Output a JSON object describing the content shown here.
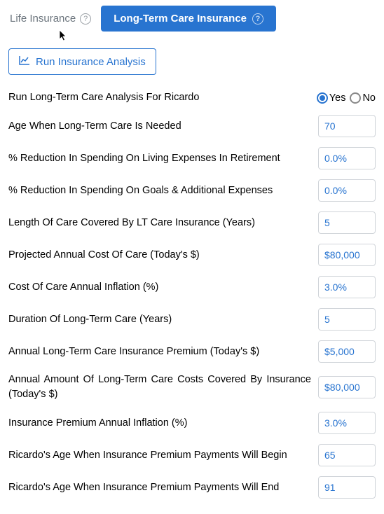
{
  "tabs": {
    "inactive": "Life Insurance",
    "active": "Long-Term Care Insurance"
  },
  "runButton": "Run Insurance Analysis",
  "radio": {
    "yes": "Yes",
    "no": "No"
  },
  "rows": [
    {
      "label": "Run Long-Term Care Analysis For Ricardo",
      "type": "radio",
      "selected": "yes"
    },
    {
      "label": "Age When Long-Term Care Is Needed",
      "type": "input",
      "value": "70"
    },
    {
      "label": "% Reduction In Spending On Living Expenses In Retirement",
      "type": "input",
      "value": "0.0%"
    },
    {
      "label": "% Reduction In Spending On Goals & Additional Expenses",
      "type": "input",
      "value": "0.0%"
    },
    {
      "label": "Length Of Care Covered By LT Care Insurance (Years)",
      "type": "input",
      "value": "5"
    },
    {
      "label": "Projected Annual Cost Of Care (Today's $)",
      "type": "input",
      "value": "$80,000"
    },
    {
      "label": "Cost Of Care Annual Inflation (%)",
      "type": "input",
      "value": "3.0%"
    },
    {
      "label": "Duration Of Long-Term Care (Years)",
      "type": "input",
      "value": "5"
    },
    {
      "label": "Annual Long-Term Care Insurance Premium (Today's $)",
      "type": "input",
      "value": "$5,000"
    },
    {
      "label": "Annual Amount Of Long-Term Care Costs Covered By Insurance (Today's $)",
      "type": "input",
      "value": "$80,000",
      "justify": true
    },
    {
      "label": "Insurance Premium Annual Inflation (%)",
      "type": "input",
      "value": "3.0%"
    },
    {
      "label": "Ricardo's Age When Insurance Premium Payments Will Begin",
      "type": "input",
      "value": "65"
    },
    {
      "label": "Ricardo's Age When Insurance Premium Payments Will End",
      "type": "input",
      "value": "91"
    }
  ],
  "colors": {
    "primary": "#2874d0",
    "muted": "#6c757d",
    "border": "#d0d4d9",
    "text": "#000000",
    "background": "#ffffff"
  }
}
